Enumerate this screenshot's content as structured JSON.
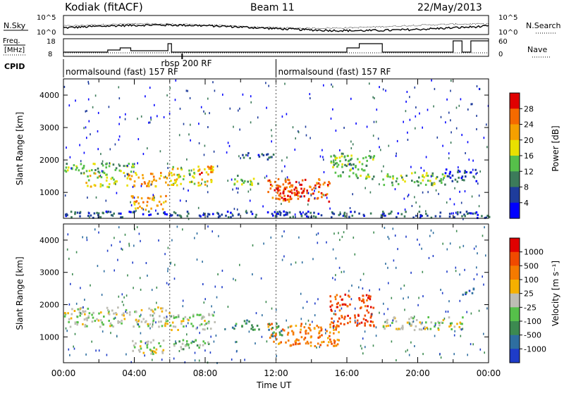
{
  "header": {
    "station": "Kodiak (fitACF)",
    "beam": "Beam 11",
    "date": "22/May/2013"
  },
  "noise_panel": {
    "left_label": "N.Sky",
    "right_label": "N.Search",
    "ticks_left": [
      "10^5",
      "10^0"
    ],
    "ticks_right": [
      "10^5",
      "10^0"
    ]
  },
  "freq_panel": {
    "left_label_1": "Freq.",
    "left_label_2": "[MHz]",
    "right_label": "Nave",
    "ticks_left": [
      "18",
      "8"
    ],
    "ticks_right": [
      "60",
      "0"
    ]
  },
  "cpid": {
    "label": "CPID",
    "segments": [
      {
        "start_h": 0,
        "end_h": 12,
        "text": "normalsound (fast) 157 RF"
      },
      {
        "start_h": 12,
        "end_h": 24,
        "text": "normalsound (fast) 157 RF"
      }
    ],
    "marker": {
      "at_h": 6.7,
      "text": "rbsp 200 RF"
    }
  },
  "chart_data": [
    {
      "type": "heatmap",
      "name": "Power",
      "ylabel": "Slant Range [km]",
      "xlabel": "Time UT",
      "xlim": [
        0,
        24
      ],
      "ylim": [
        200,
        4500
      ],
      "x_ticks": [
        "00:00",
        "04:00",
        "08:00",
        "12:00",
        "16:00",
        "20:00",
        "00:00"
      ],
      "y_ticks": [
        1000,
        2000,
        3000,
        4000
      ],
      "colorbar": {
        "label": "Power [dB]",
        "ticks": [
          "4",
          "8",
          "12",
          "16",
          "20",
          "24",
          "28"
        ],
        "colors": [
          "#0000ff",
          "#1e3c9c",
          "#3c7b5a",
          "#56c04a",
          "#e8e000",
          "#f5a000",
          "#f56a00",
          "#e00000"
        ]
      },
      "regions": [
        {
          "t0": 0.0,
          "t1": 4.0,
          "r0": 1550,
          "r1": 1900,
          "level": 3
        },
        {
          "t0": 1.2,
          "t1": 3.0,
          "r0": 1150,
          "r1": 1600,
          "level": 4
        },
        {
          "t0": 3.5,
          "t1": 6.0,
          "r0": 1150,
          "r1": 1600,
          "level": 5
        },
        {
          "t0": 3.8,
          "t1": 5.8,
          "r0": 450,
          "r1": 900,
          "level": 5
        },
        {
          "t0": 6.0,
          "t1": 8.5,
          "r0": 1200,
          "r1": 1800,
          "level": 4
        },
        {
          "t0": 7.5,
          "t1": 8.3,
          "r0": 1500,
          "r1": 1800,
          "level": 6
        },
        {
          "t0": 9.5,
          "t1": 11.0,
          "r0": 1200,
          "r1": 1500,
          "level": 3
        },
        {
          "t0": 10.0,
          "t1": 12.0,
          "r0": 2000,
          "r1": 2200,
          "level": 1
        },
        {
          "t0": 11.5,
          "t1": 15.0,
          "r0": 700,
          "r1": 1400,
          "level": 6
        },
        {
          "t0": 12.0,
          "t1": 13.8,
          "r0": 850,
          "r1": 1250,
          "level": 7
        },
        {
          "t0": 15.0,
          "t1": 17.5,
          "r0": 1400,
          "r1": 2200,
          "level": 3
        },
        {
          "t0": 18.0,
          "t1": 21.5,
          "r0": 1200,
          "r1": 1600,
          "level": 3
        },
        {
          "t0": 21.5,
          "t1": 23.3,
          "r0": 1300,
          "r1": 1700,
          "level": 1
        },
        {
          "t0": 0.0,
          "t1": 24.0,
          "r0": 200,
          "r1": 400,
          "level": 1
        }
      ]
    },
    {
      "type": "heatmap",
      "name": "Velocity",
      "ylabel": "Slant Range [km]",
      "xlabel": "Time UT",
      "xlim": [
        0,
        24
      ],
      "ylim": [
        200,
        4500
      ],
      "x_ticks": [
        "00:00",
        "04:00",
        "08:00",
        "12:00",
        "16:00",
        "20:00",
        "00:00"
      ],
      "y_ticks": [
        1000,
        2000,
        3000,
        4000
      ],
      "colorbar": {
        "label": "Velocity [m s⁻¹]",
        "ticks": [
          "1000",
          "500",
          "100",
          "25",
          "-25",
          "-100",
          "-500",
          "-1000"
        ],
        "colors": [
          "#1e3cc8",
          "#2e6ea0",
          "#3c8a50",
          "#56c04a",
          "#bdbdb4",
          "#f5b000",
          "#f57a00",
          "#f04a00",
          "#e00000"
        ]
      },
      "regions": [
        {
          "t0": 0.0,
          "t1": 6.0,
          "r0": 1300,
          "r1": 1900,
          "level": 4
        },
        {
          "t0": 3.8,
          "t1": 5.8,
          "r0": 450,
          "r1": 900,
          "level": 4
        },
        {
          "t0": 6.0,
          "t1": 8.2,
          "r0": 600,
          "r1": 900,
          "level": 3
        },
        {
          "t0": 6.0,
          "t1": 8.5,
          "r0": 1200,
          "r1": 1700,
          "level": 4
        },
        {
          "t0": 9.5,
          "t1": 11.0,
          "r0": 1200,
          "r1": 1500,
          "level": 2
        },
        {
          "t0": 11.5,
          "t1": 15.5,
          "r0": 700,
          "r1": 1400,
          "level": 6
        },
        {
          "t0": 11.5,
          "t1": 12.5,
          "r0": 1000,
          "r1": 1400,
          "level": 2
        },
        {
          "t0": 15.0,
          "t1": 17.5,
          "r0": 1300,
          "r1": 2300,
          "level": 7
        },
        {
          "t0": 18.0,
          "t1": 22.5,
          "r0": 1200,
          "r1": 1600,
          "level": 4
        },
        {
          "t0": 22.5,
          "t1": 23.2,
          "r0": 2200,
          "r1": 2500,
          "level": 1
        }
      ]
    }
  ]
}
